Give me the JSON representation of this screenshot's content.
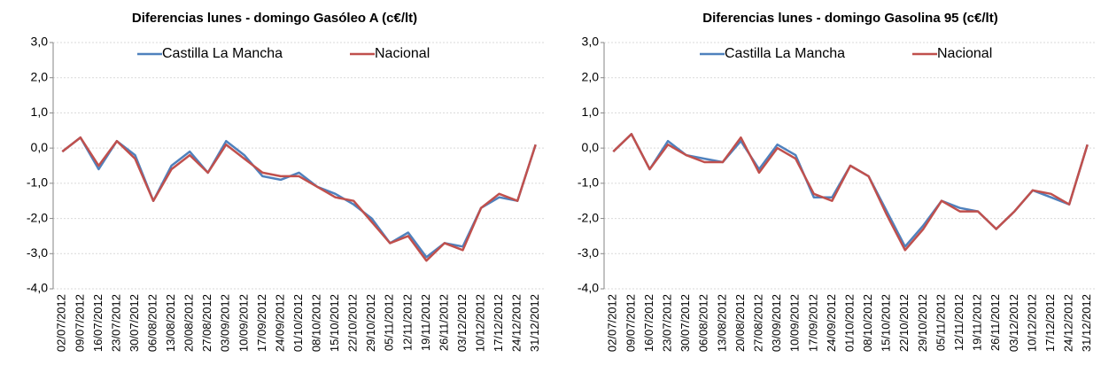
{
  "chart_data": [
    {
      "type": "line",
      "title": "Diferencias lunes - domingo Gasóleo A  (c€/lt)",
      "categories": [
        "02/07/2012",
        "09/07/2012",
        "16/07/2012",
        "23/07/2012",
        "30/07/2012",
        "06/08/2012",
        "13/08/2012",
        "20/08/2012",
        "27/08/2012",
        "03/09/2012",
        "10/09/2012",
        "17/09/2012",
        "24/09/2012",
        "01/10/2012",
        "08/10/2012",
        "15/10/2012",
        "22/10/2012",
        "29/10/2012",
        "05/11/2012",
        "12/11/2012",
        "19/11/2012",
        "26/11/2012",
        "03/12/2012",
        "10/12/2012",
        "17/12/2012",
        "24/12/2012",
        "31/12/2012"
      ],
      "series": [
        {
          "name": "Castilla La Mancha",
          "color": "#4f81bd",
          "values": [
            -0.1,
            0.3,
            -0.6,
            0.2,
            -0.2,
            -1.5,
            -0.5,
            -0.1,
            -0.7,
            0.2,
            -0.2,
            -0.8,
            -0.9,
            -0.7,
            -1.1,
            -1.3,
            -1.6,
            -2.0,
            -2.7,
            -2.4,
            -3.1,
            -2.7,
            -2.8,
            -1.7,
            -1.4,
            -1.5,
            0.1
          ]
        },
        {
          "name": "Nacional",
          "color": "#c0504d",
          "values": [
            -0.1,
            0.3,
            -0.5,
            0.2,
            -0.3,
            -1.5,
            -0.6,
            -0.2,
            -0.7,
            0.1,
            -0.3,
            -0.7,
            -0.8,
            -0.8,
            -1.1,
            -1.4,
            -1.5,
            -2.1,
            -2.7,
            -2.5,
            -3.2,
            -2.7,
            -2.9,
            -1.7,
            -1.3,
            -1.5,
            0.1
          ]
        }
      ],
      "ylim": [
        -4,
        3
      ],
      "yticks": [
        {
          "value": -4,
          "label": "-4,0"
        },
        {
          "value": -3,
          "label": "-3,0"
        },
        {
          "value": -2,
          "label": "-2,0"
        },
        {
          "value": -1,
          "label": "-1,0"
        },
        {
          "value": 0,
          "label": "0,0"
        },
        {
          "value": 1,
          "label": "1,0"
        },
        {
          "value": 2,
          "label": "2,0"
        },
        {
          "value": 3,
          "label": "3,0"
        }
      ],
      "grid": true,
      "legend": "top"
    },
    {
      "type": "line",
      "title": "Diferencias lunes - domingo Gasolina 95  (c€/lt)",
      "categories": [
        "02/07/2012",
        "09/07/2012",
        "16/07/2012",
        "23/07/2012",
        "30/07/2012",
        "06/08/2012",
        "13/08/2012",
        "20/08/2012",
        "27/08/2012",
        "03/09/2012",
        "10/09/2012",
        "17/09/2012",
        "24/09/2012",
        "01/10/2012",
        "08/10/2012",
        "15/10/2012",
        "22/10/2012",
        "29/10/2012",
        "05/11/2012",
        "12/11/2012",
        "19/11/2012",
        "26/11/2012",
        "03/12/2012",
        "10/12/2012",
        "17/12/2012",
        "24/12/2012",
        "31/12/2012"
      ],
      "series": [
        {
          "name": "Castilla La Mancha",
          "color": "#4f81bd",
          "values": [
            -0.1,
            0.4,
            -0.6,
            0.2,
            -0.2,
            -0.3,
            -0.4,
            0.2,
            -0.6,
            0.1,
            -0.2,
            -1.4,
            -1.4,
            -0.5,
            -0.8,
            -1.8,
            -2.8,
            -2.2,
            -1.5,
            -1.7,
            -1.8,
            -2.3,
            -1.8,
            -1.2,
            -1.4,
            -1.6,
            0.1
          ]
        },
        {
          "name": "Nacional",
          "color": "#c0504d",
          "values": [
            -0.1,
            0.4,
            -0.6,
            0.1,
            -0.2,
            -0.4,
            -0.4,
            0.3,
            -0.7,
            0.0,
            -0.3,
            -1.3,
            -1.5,
            -0.5,
            -0.8,
            -1.9,
            -2.9,
            -2.3,
            -1.5,
            -1.8,
            -1.8,
            -2.3,
            -1.8,
            -1.2,
            -1.3,
            -1.6,
            0.1
          ]
        }
      ],
      "ylim": [
        -4,
        3
      ],
      "yticks": [
        {
          "value": -4,
          "label": "-4,0"
        },
        {
          "value": -3,
          "label": "-3,0"
        },
        {
          "value": -2,
          "label": "-2,0"
        },
        {
          "value": -1,
          "label": "-1,0"
        },
        {
          "value": 0,
          "label": "0,0"
        },
        {
          "value": 1,
          "label": "1,0"
        },
        {
          "value": 2,
          "label": "2,0"
        },
        {
          "value": 3,
          "label": "3,0"
        }
      ],
      "grid": true,
      "legend": "top"
    }
  ]
}
